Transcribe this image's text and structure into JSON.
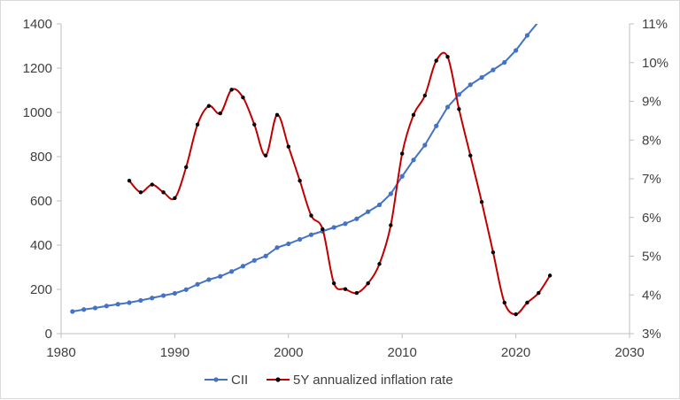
{
  "chart_data": {
    "type": "line",
    "x_axis": {
      "min": 1980,
      "max": 2030,
      "ticks": [
        1980,
        1990,
        2000,
        2010,
        2020,
        2030
      ]
    },
    "y_left": {
      "min": 0,
      "max": 1400,
      "ticks": [
        0,
        200,
        400,
        600,
        800,
        1000,
        1200,
        1400
      ]
    },
    "y_right": {
      "min": 3,
      "max": 11,
      "ticks": [
        3,
        4,
        5,
        6,
        7,
        8,
        9,
        10,
        11
      ],
      "tick_labels": [
        "3%",
        "4%",
        "5%",
        "6%",
        "7%",
        "8%",
        "9%",
        "10%",
        "11%"
      ]
    },
    "grid": false,
    "legend_position": "bottom",
    "series": [
      {
        "name": "CII",
        "axis": "left",
        "color": "#4472c4",
        "marker": "circle",
        "smooth": false,
        "x": [
          1981,
          1982,
          1983,
          1984,
          1985,
          1986,
          1987,
          1988,
          1989,
          1990,
          1991,
          1992,
          1993,
          1994,
          1995,
          1996,
          1997,
          1998,
          1999,
          2000,
          2001,
          2002,
          2003,
          2004,
          2005,
          2006,
          2007,
          2008,
          2009,
          2010,
          2011,
          2012,
          2013,
          2014,
          2015,
          2016,
          2017,
          2018,
          2019,
          2020,
          2021,
          2022,
          2023
        ],
        "y": [
          100,
          109,
          116,
          125,
          133,
          140,
          150,
          161,
          172,
          182,
          199,
          223,
          244,
          259,
          281,
          305,
          331,
          351,
          389,
          406,
          426,
          447,
          463,
          480,
          497,
          519,
          551,
          582,
          632,
          711,
          785,
          852,
          939,
          1024,
          1081,
          1125,
          1158,
          1192,
          1226,
          1280,
          1348,
          1410,
          1470
        ]
      },
      {
        "name": "5Y annualized inflation rate",
        "axis": "right",
        "color": "#c00000",
        "marker": "circle",
        "smooth": true,
        "x": [
          1986,
          1987,
          1988,
          1989,
          1990,
          1991,
          1992,
          1993,
          1994,
          1995,
          1996,
          1997,
          1998,
          1999,
          2000,
          2001,
          2002,
          2003,
          2004,
          2005,
          2006,
          2007,
          2008,
          2009,
          2010,
          2011,
          2012,
          2013,
          2014,
          2015,
          2016,
          2017,
          2018,
          2019,
          2020,
          2021,
          2022,
          2023
        ],
        "y": [
          6.95,
          6.65,
          6.85,
          6.65,
          6.5,
          7.3,
          8.4,
          8.88,
          8.69,
          9.3,
          9.1,
          8.4,
          7.6,
          8.65,
          7.83,
          6.95,
          6.05,
          5.7,
          4.3,
          4.15,
          4.05,
          4.3,
          4.8,
          5.8,
          7.65,
          8.65,
          9.15,
          10.05,
          10.15,
          8.8,
          7.6,
          6.4,
          5.1,
          3.8,
          3.5,
          3.8,
          4.05,
          4.5
        ]
      }
    ]
  }
}
